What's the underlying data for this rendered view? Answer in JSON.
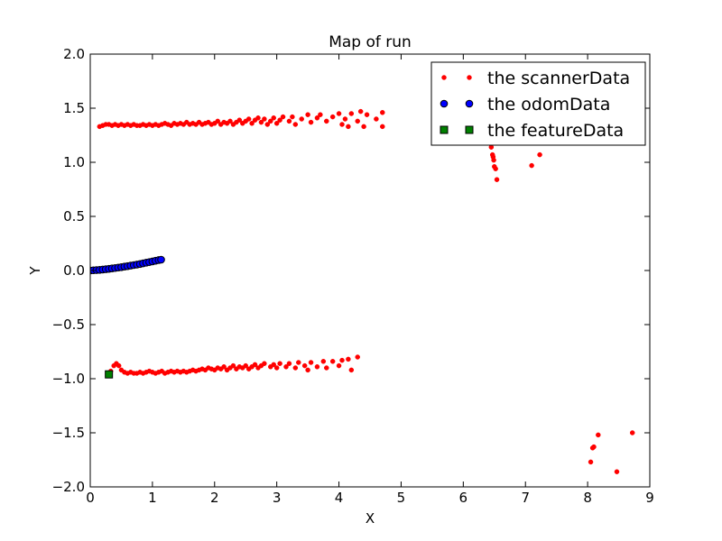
{
  "chart_data": {
    "type": "scatter",
    "title": "Map of run",
    "xlabel": "X",
    "ylabel": "Y",
    "xlim": [
      0,
      9
    ],
    "ylim": [
      -2.0,
      2.0
    ],
    "xticks": [
      0,
      1,
      2,
      3,
      4,
      5,
      6,
      7,
      8,
      9
    ],
    "xtick_labels": [
      "0",
      "1",
      "2",
      "3",
      "4",
      "5",
      "6",
      "7",
      "8",
      "9"
    ],
    "yticks": [
      2.0,
      1.5,
      1.0,
      0.5,
      0.0,
      -0.5,
      -1.0,
      -1.5,
      -2.0
    ],
    "ytick_labels": [
      "2.0",
      "1.5",
      "1.0",
      "0.5",
      "0.0",
      "−0.5",
      "−1.0",
      "−1.5",
      "−2.0"
    ],
    "grid": false,
    "legend_position": "top-right",
    "series": [
      {
        "name": "the scannerData",
        "color": "#ff0000",
        "marker": "dot",
        "points": [
          [
            0.15,
            1.33
          ],
          [
            0.2,
            1.34
          ],
          [
            0.25,
            1.35
          ],
          [
            0.3,
            1.35
          ],
          [
            0.35,
            1.34
          ],
          [
            0.4,
            1.35
          ],
          [
            0.45,
            1.34
          ],
          [
            0.5,
            1.35
          ],
          [
            0.55,
            1.34
          ],
          [
            0.6,
            1.35
          ],
          [
            0.65,
            1.34
          ],
          [
            0.7,
            1.35
          ],
          [
            0.75,
            1.34
          ],
          [
            0.8,
            1.34
          ],
          [
            0.85,
            1.35
          ],
          [
            0.9,
            1.34
          ],
          [
            0.95,
            1.35
          ],
          [
            1.0,
            1.34
          ],
          [
            1.05,
            1.35
          ],
          [
            1.1,
            1.34
          ],
          [
            1.15,
            1.35
          ],
          [
            1.2,
            1.36
          ],
          [
            1.25,
            1.35
          ],
          [
            1.3,
            1.34
          ],
          [
            1.35,
            1.36
          ],
          [
            1.4,
            1.35
          ],
          [
            1.45,
            1.36
          ],
          [
            1.5,
            1.35
          ],
          [
            1.55,
            1.37
          ],
          [
            1.6,
            1.35
          ],
          [
            1.65,
            1.36
          ],
          [
            1.7,
            1.35
          ],
          [
            1.75,
            1.37
          ],
          [
            1.8,
            1.35
          ],
          [
            1.85,
            1.36
          ],
          [
            1.9,
            1.37
          ],
          [
            1.95,
            1.35
          ],
          [
            2.0,
            1.36
          ],
          [
            2.05,
            1.38
          ],
          [
            2.1,
            1.35
          ],
          [
            2.15,
            1.37
          ],
          [
            2.2,
            1.36
          ],
          [
            2.25,
            1.38
          ],
          [
            2.3,
            1.35
          ],
          [
            2.35,
            1.37
          ],
          [
            2.4,
            1.39
          ],
          [
            2.45,
            1.36
          ],
          [
            2.5,
            1.38
          ],
          [
            2.55,
            1.4
          ],
          [
            2.6,
            1.36
          ],
          [
            2.65,
            1.39
          ],
          [
            2.7,
            1.41
          ],
          [
            2.75,
            1.37
          ],
          [
            2.8,
            1.4
          ],
          [
            2.85,
            1.35
          ],
          [
            2.9,
            1.38
          ],
          [
            2.95,
            1.41
          ],
          [
            3.0,
            1.36
          ],
          [
            3.05,
            1.39
          ],
          [
            3.1,
            1.42
          ],
          [
            3.2,
            1.38
          ],
          [
            3.25,
            1.42
          ],
          [
            3.3,
            1.35
          ],
          [
            3.4,
            1.4
          ],
          [
            3.5,
            1.44
          ],
          [
            3.55,
            1.37
          ],
          [
            3.65,
            1.41
          ],
          [
            3.7,
            1.44
          ],
          [
            3.8,
            1.38
          ],
          [
            3.9,
            1.42
          ],
          [
            4.0,
            1.45
          ],
          [
            4.05,
            1.35
          ],
          [
            4.1,
            1.4
          ],
          [
            4.2,
            1.45
          ],
          [
            4.3,
            1.38
          ],
          [
            4.35,
            1.47
          ],
          [
            4.45,
            1.44
          ],
          [
            4.6,
            1.4
          ],
          [
            4.7,
            1.46
          ],
          [
            4.7,
            1.33
          ],
          [
            4.4,
            1.33
          ],
          [
            4.15,
            1.33
          ],
          [
            6.45,
            1.14
          ],
          [
            6.47,
            1.07
          ],
          [
            6.48,
            1.05
          ],
          [
            6.49,
            1.02
          ],
          [
            6.5,
            0.96
          ],
          [
            6.52,
            0.94
          ],
          [
            6.54,
            0.84
          ],
          [
            7.1,
            0.97
          ],
          [
            7.23,
            1.07
          ],
          [
            0.28,
            -0.96
          ],
          [
            0.33,
            -0.93
          ],
          [
            0.38,
            -0.88
          ],
          [
            0.42,
            -0.86
          ],
          [
            0.46,
            -0.88
          ],
          [
            0.5,
            -0.92
          ],
          [
            0.55,
            -0.94
          ],
          [
            0.6,
            -0.95
          ],
          [
            0.65,
            -0.94
          ],
          [
            0.7,
            -0.95
          ],
          [
            0.75,
            -0.95
          ],
          [
            0.8,
            -0.94
          ],
          [
            0.85,
            -0.95
          ],
          [
            0.9,
            -0.94
          ],
          [
            0.95,
            -0.93
          ],
          [
            1.0,
            -0.94
          ],
          [
            1.05,
            -0.95
          ],
          [
            1.1,
            -0.94
          ],
          [
            1.15,
            -0.93
          ],
          [
            1.2,
            -0.95
          ],
          [
            1.25,
            -0.94
          ],
          [
            1.3,
            -0.93
          ],
          [
            1.35,
            -0.94
          ],
          [
            1.4,
            -0.93
          ],
          [
            1.45,
            -0.94
          ],
          [
            1.5,
            -0.93
          ],
          [
            1.55,
            -0.94
          ],
          [
            1.6,
            -0.93
          ],
          [
            1.65,
            -0.92
          ],
          [
            1.7,
            -0.93
          ],
          [
            1.75,
            -0.92
          ],
          [
            1.8,
            -0.91
          ],
          [
            1.85,
            -0.92
          ],
          [
            1.9,
            -0.9
          ],
          [
            1.95,
            -0.91
          ],
          [
            2.0,
            -0.92
          ],
          [
            2.05,
            -0.9
          ],
          [
            2.1,
            -0.91
          ],
          [
            2.15,
            -0.89
          ],
          [
            2.2,
            -0.92
          ],
          [
            2.25,
            -0.9
          ],
          [
            2.3,
            -0.88
          ],
          [
            2.35,
            -0.91
          ],
          [
            2.4,
            -0.89
          ],
          [
            2.45,
            -0.9
          ],
          [
            2.5,
            -0.88
          ],
          [
            2.55,
            -0.91
          ],
          [
            2.6,
            -0.89
          ],
          [
            2.65,
            -0.87
          ],
          [
            2.7,
            -0.9
          ],
          [
            2.75,
            -0.88
          ],
          [
            2.8,
            -0.86
          ],
          [
            2.9,
            -0.89
          ],
          [
            2.95,
            -0.87
          ],
          [
            3.0,
            -0.9
          ],
          [
            3.05,
            -0.86
          ],
          [
            3.15,
            -0.89
          ],
          [
            3.2,
            -0.86
          ],
          [
            3.3,
            -0.9
          ],
          [
            3.35,
            -0.85
          ],
          [
            3.45,
            -0.88
          ],
          [
            3.5,
            -0.92
          ],
          [
            3.55,
            -0.85
          ],
          [
            3.65,
            -0.89
          ],
          [
            3.75,
            -0.84
          ],
          [
            3.8,
            -0.9
          ],
          [
            3.9,
            -0.84
          ],
          [
            4.0,
            -0.88
          ],
          [
            4.05,
            -0.83
          ],
          [
            4.15,
            -0.82
          ],
          [
            4.2,
            -0.92
          ],
          [
            4.3,
            -0.8
          ],
          [
            8.05,
            -1.77
          ],
          [
            8.08,
            -1.64
          ],
          [
            8.1,
            -1.63
          ],
          [
            8.17,
            -1.52
          ],
          [
            8.47,
            -1.86
          ],
          [
            8.72,
            -1.5
          ]
        ]
      },
      {
        "name": "the odomData",
        "color": "#0000ff",
        "marker": "circle",
        "points": [
          [
            0.0,
            0.0
          ],
          [
            0.05,
            0.002
          ],
          [
            0.1,
            0.004
          ],
          [
            0.15,
            0.006
          ],
          [
            0.2,
            0.009
          ],
          [
            0.25,
            0.012
          ],
          [
            0.3,
            0.015
          ],
          [
            0.35,
            0.019
          ],
          [
            0.4,
            0.023
          ],
          [
            0.45,
            0.027
          ],
          [
            0.5,
            0.031
          ],
          [
            0.55,
            0.036
          ],
          [
            0.6,
            0.04
          ],
          [
            0.65,
            0.045
          ],
          [
            0.7,
            0.05
          ],
          [
            0.75,
            0.055
          ],
          [
            0.8,
            0.06
          ],
          [
            0.85,
            0.066
          ],
          [
            0.9,
            0.072
          ],
          [
            0.95,
            0.078
          ],
          [
            1.0,
            0.084
          ],
          [
            1.05,
            0.09
          ],
          [
            1.1,
            0.096
          ],
          [
            1.14,
            0.1
          ]
        ]
      },
      {
        "name": "the featureData",
        "color": "#008000",
        "marker": "square",
        "points": [
          [
            0.3,
            -0.96
          ]
        ]
      }
    ]
  }
}
